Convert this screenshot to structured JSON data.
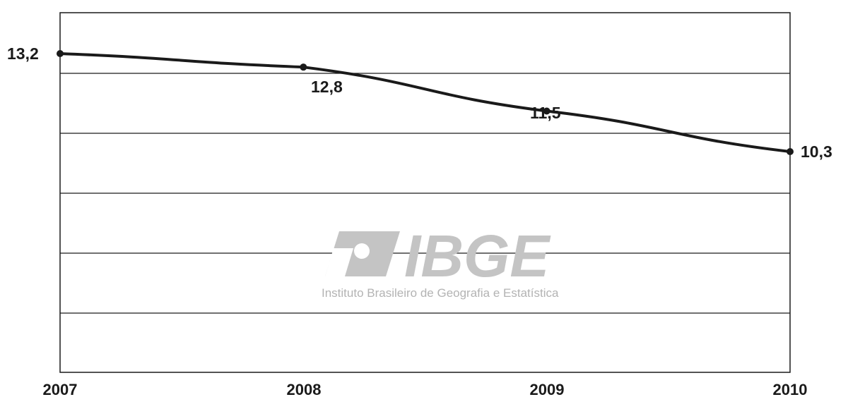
{
  "chart_data": {
    "type": "line",
    "categories": [
      "2007",
      "2008",
      "2009",
      "2010"
    ],
    "series": [
      {
        "values": [
          13.2,
          12.8,
          11.5,
          10.3
        ]
      }
    ],
    "data_labels": [
      "13,2",
      "12,8",
      "11,5",
      "10,3"
    ],
    "title": "",
    "xlabel": "",
    "ylabel": "",
    "grid": true,
    "line_color": "#1a1a1a"
  },
  "watermark": {
    "logo_text": "IBGE",
    "subtitle": "Instituto Brasileiro de Geografia e Estatística"
  }
}
